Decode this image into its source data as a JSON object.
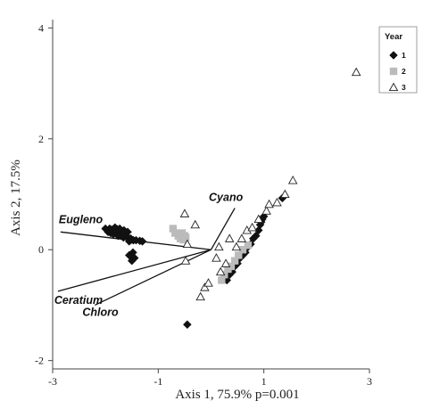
{
  "chart_data": {
    "type": "scatter",
    "title": "",
    "xlabel": "Axis 1, 75.9% p=0.001",
    "ylabel": "Axis 2, 17.5%",
    "xlim": [
      -3,
      3
    ],
    "ylim": [
      -2.15,
      4.15
    ],
    "xticks": [
      -3,
      -1,
      1,
      3
    ],
    "yticks": [
      -2,
      0,
      2,
      4
    ],
    "grid": false,
    "legend": {
      "title": "Year",
      "position": "top-right"
    },
    "series": [
      {
        "name": "1",
        "marker": "diamond",
        "color": "#111111",
        "points": [
          [
            -2.0,
            0.38
          ],
          [
            -1.95,
            0.32
          ],
          [
            -1.92,
            0.38
          ],
          [
            -1.9,
            0.3
          ],
          [
            -1.88,
            0.36
          ],
          [
            -1.85,
            0.28
          ],
          [
            -1.83,
            0.35
          ],
          [
            -1.82,
            0.4
          ],
          [
            -1.8,
            0.32
          ],
          [
            -1.78,
            0.37
          ],
          [
            -1.76,
            0.25
          ],
          [
            -1.75,
            0.33
          ],
          [
            -1.73,
            0.38
          ],
          [
            -1.72,
            0.28
          ],
          [
            -1.7,
            0.35
          ],
          [
            -1.68,
            0.3
          ],
          [
            -1.66,
            0.22
          ],
          [
            -1.65,
            0.35
          ],
          [
            -1.62,
            0.3
          ],
          [
            -1.6,
            0.25
          ],
          [
            -1.58,
            0.32
          ],
          [
            -1.55,
            0.15
          ],
          [
            -1.52,
            0.2
          ],
          [
            -1.5,
            0.18
          ],
          [
            -1.47,
            0.17
          ],
          [
            -1.42,
            0.17
          ],
          [
            -1.35,
            0.16
          ],
          [
            -1.3,
            0.15
          ],
          [
            -1.48,
            -0.05
          ],
          [
            -1.5,
            -0.2
          ],
          [
            -1.45,
            -0.15
          ],
          [
            -1.55,
            -0.1
          ],
          [
            -0.45,
            -1.35
          ],
          [
            0.3,
            -0.55
          ],
          [
            0.35,
            -0.45
          ],
          [
            0.4,
            -0.4
          ],
          [
            0.45,
            -0.3
          ],
          [
            0.5,
            -0.25
          ],
          [
            0.55,
            -0.15
          ],
          [
            0.6,
            -0.1
          ],
          [
            0.65,
            -0.05
          ],
          [
            0.7,
            0.05
          ],
          [
            0.75,
            0.1
          ],
          [
            0.8,
            0.2
          ],
          [
            0.85,
            0.25
          ],
          [
            0.9,
            0.35
          ],
          [
            0.93,
            0.45
          ],
          [
            0.95,
            0.5
          ],
          [
            0.97,
            0.55
          ],
          [
            1.0,
            0.6
          ],
          [
            1.35,
            0.93
          ]
        ]
      },
      {
        "name": "2",
        "marker": "square",
        "color": "#bbbbbb",
        "points": [
          [
            -0.72,
            0.38
          ],
          [
            -0.68,
            0.3
          ],
          [
            -0.62,
            0.25
          ],
          [
            -0.58,
            0.2
          ],
          [
            -0.55,
            0.3
          ],
          [
            -0.52,
            0.18
          ],
          [
            -0.5,
            0.25
          ],
          [
            -0.48,
            0.22
          ],
          [
            0.2,
            -0.55
          ],
          [
            0.25,
            -0.45
          ],
          [
            0.32,
            -0.35
          ],
          [
            0.38,
            -0.3
          ],
          [
            0.45,
            -0.2
          ],
          [
            0.52,
            -0.1
          ],
          [
            0.6,
            0.0
          ],
          [
            0.7,
            0.08
          ]
        ]
      },
      {
        "name": "3",
        "marker": "triangle",
        "color": "#ffffff",
        "points": [
          [
            -0.5,
            0.65
          ],
          [
            -0.3,
            0.45
          ],
          [
            -0.45,
            0.1
          ],
          [
            -0.48,
            -0.2
          ],
          [
            -0.12,
            -0.68
          ],
          [
            -0.05,
            -0.6
          ],
          [
            -0.2,
            -0.85
          ],
          [
            0.1,
            -0.15
          ],
          [
            0.15,
            0.05
          ],
          [
            0.18,
            -0.4
          ],
          [
            0.28,
            -0.25
          ],
          [
            0.35,
            0.2
          ],
          [
            0.48,
            0.05
          ],
          [
            0.58,
            0.2
          ],
          [
            0.68,
            0.35
          ],
          [
            0.78,
            0.4
          ],
          [
            0.9,
            0.55
          ],
          [
            1.05,
            0.7
          ],
          [
            1.1,
            0.82
          ],
          [
            1.25,
            0.85
          ],
          [
            1.4,
            1.0
          ],
          [
            1.55,
            1.25
          ],
          [
            2.75,
            3.2
          ]
        ]
      }
    ],
    "vectors": [
      {
        "name": "Eugleno",
        "x": -2.85,
        "y": 0.32
      },
      {
        "name": "Ceratium",
        "x": -2.9,
        "y": -0.75
      },
      {
        "name": "Chloro",
        "x": -2.2,
        "y": -1.0
      },
      {
        "name": "Cyano",
        "x": 0.45,
        "y": 0.75
      }
    ]
  }
}
